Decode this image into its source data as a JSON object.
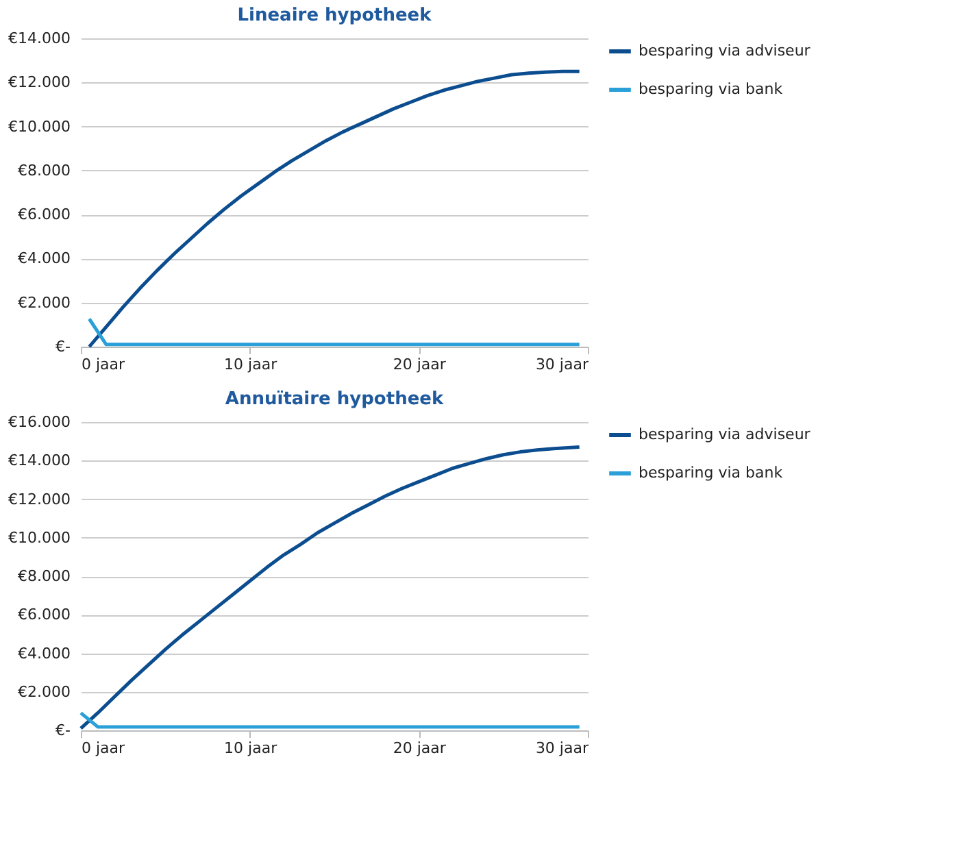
{
  "chart_data": [
    {
      "type": "line",
      "title": "Lineaire hypotheek",
      "xlim": [
        0,
        30
      ],
      "xticks": [
        {
          "value": 0,
          "label": "0 jaar"
        },
        {
          "value": 10,
          "label": "10 jaar"
        },
        {
          "value": 20,
          "label": "20 jaar"
        },
        {
          "value": 30,
          "label": "30 jaar"
        }
      ],
      "ylim": [
        0,
        14000
      ],
      "yticks": [
        {
          "value": 0,
          "label": "€-"
        },
        {
          "value": 2000,
          "label": "€2.000"
        },
        {
          "value": 4000,
          "label": "€4.000"
        },
        {
          "value": 6000,
          "label": "€6.000"
        },
        {
          "value": 8000,
          "label": "€8.000"
        },
        {
          "value": 10000,
          "label": "€10.000"
        },
        {
          "value": 12000,
          "label": "€12.000"
        },
        {
          "value": 14000,
          "label": "€14.000"
        }
      ],
      "grid": "y",
      "legend": "right",
      "line_style": "solid",
      "x": [
        0.5,
        1.5,
        2.5,
        3.5,
        4.5,
        5.5,
        6.5,
        7.5,
        8.5,
        9.5,
        10.5,
        11.5,
        12.5,
        13.5,
        14.5,
        15.5,
        16.5,
        17.5,
        18.5,
        19.5,
        20.5,
        21.5,
        22.5,
        23.5,
        24.5,
        25.5,
        26.5,
        27.5,
        28.5,
        29.5
      ],
      "series": [
        {
          "name": "besparing via adviseur",
          "color": "#0b4d8f",
          "values": [
            0,
            900,
            1800,
            2650,
            3450,
            4200,
            4900,
            5600,
            6250,
            6850,
            7400,
            7950,
            8450,
            8900,
            9350,
            9750,
            10100,
            10450,
            10800,
            11100,
            11400,
            11650,
            11850,
            12050,
            12200,
            12350,
            12420,
            12470,
            12500,
            12500
          ]
        },
        {
          "name": "besparing via bank",
          "color": "#2a9fd8",
          "values": [
            1260,
            100,
            100,
            100,
            100,
            100,
            100,
            100,
            100,
            100,
            100,
            100,
            100,
            100,
            100,
            100,
            100,
            100,
            100,
            100,
            100,
            100,
            100,
            100,
            100,
            100,
            100,
            100,
            100,
            100
          ]
        }
      ]
    },
    {
      "type": "line",
      "title": "Annuïtaire hypotheek",
      "xlim": [
        0,
        30
      ],
      "xticks": [
        {
          "value": 0,
          "label": "0 jaar"
        },
        {
          "value": 10,
          "label": "10 jaar"
        },
        {
          "value": 20,
          "label": "20 jaar"
        },
        {
          "value": 30,
          "label": "30 jaar"
        }
      ],
      "ylim": [
        0,
        16000
      ],
      "yticks": [
        {
          "value": 0,
          "label": "€-"
        },
        {
          "value": 2000,
          "label": "€2.000"
        },
        {
          "value": 4000,
          "label": "€4.000"
        },
        {
          "value": 6000,
          "label": "€6.000"
        },
        {
          "value": 8000,
          "label": "€8.000"
        },
        {
          "value": 10000,
          "label": "€10.000"
        },
        {
          "value": 12000,
          "label": "€12.000"
        },
        {
          "value": 14000,
          "label": "€14.000"
        },
        {
          "value": 16000,
          "label": "€16.000"
        }
      ],
      "grid": "y",
      "legend": "right",
      "line_style": "solid",
      "x": [
        0,
        1,
        2,
        3,
        4,
        5,
        6,
        7,
        8,
        9,
        10,
        11,
        12,
        13,
        14,
        15,
        16,
        17,
        18,
        19,
        20,
        21,
        22,
        23,
        24,
        25,
        26,
        27,
        28,
        29.5
      ],
      "series": [
        {
          "name": "besparing via adviseur",
          "color": "#0b4d8f",
          "values": [
            100,
            900,
            1750,
            2600,
            3400,
            4200,
            4950,
            5650,
            6350,
            7050,
            7750,
            8450,
            9100,
            9650,
            10250,
            10750,
            11250,
            11700,
            12150,
            12550,
            12900,
            13250,
            13600,
            13850,
            14100,
            14300,
            14450,
            14550,
            14620,
            14700
          ]
        },
        {
          "name": "besparing via bank",
          "color": "#2a9fd8",
          "values": [
            900,
            180,
            180,
            180,
            180,
            180,
            180,
            180,
            180,
            180,
            180,
            180,
            180,
            180,
            180,
            180,
            180,
            180,
            180,
            180,
            180,
            180,
            180,
            180,
            180,
            180,
            180,
            180,
            180,
            180
          ]
        }
      ]
    }
  ]
}
